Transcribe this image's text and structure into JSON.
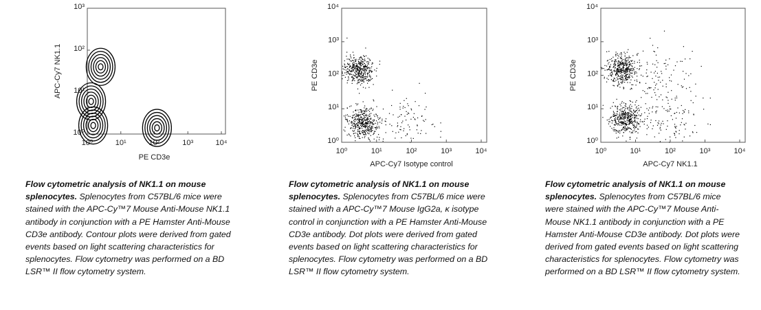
{
  "chart_data": [
    {
      "type": "contour",
      "xlabel": "PE CD3e",
      "ylabel": "APC-Cy7 NK1.1",
      "log_scale": true,
      "xlim": [
        1,
        10000
      ],
      "ylim": [
        1,
        1000
      ],
      "xticks": [
        {
          "value": 1,
          "label": "10⁰"
        },
        {
          "value": 10,
          "label": "10¹"
        },
        {
          "value": 100,
          "label": "10²"
        },
        {
          "value": 1000,
          "label": "10³"
        },
        {
          "value": 10000,
          "label": "10⁴"
        }
      ],
      "yticks": [
        {
          "value": 1,
          "label": "10⁰"
        },
        {
          "value": 10,
          "label": "10¹"
        },
        {
          "value": 100,
          "label": "10²"
        },
        {
          "value": 1000,
          "label": "10³"
        }
      ],
      "clusters": {
        "x": [
          1.3,
          1.5,
          120,
          2.5
        ],
        "y": [
          6,
          1.6,
          1.4,
          40
        ]
      }
    },
    {
      "type": "scatter",
      "xlabel": "APC-Cy7 Isotype control",
      "ylabel": "PE CD3e",
      "log_scale": true,
      "xlim": [
        1,
        10000
      ],
      "ylim": [
        1,
        10000
      ],
      "xticks": [
        {
          "value": 1,
          "label": "10⁰"
        },
        {
          "value": 10,
          "label": "10¹"
        },
        {
          "value": 100,
          "label": "10²"
        },
        {
          "value": 1000,
          "label": "10³"
        },
        {
          "value": 10000,
          "label": "10⁴"
        }
      ],
      "yticks": [
        {
          "value": 1,
          "label": "10⁰"
        },
        {
          "value": 10,
          "label": "10¹"
        },
        {
          "value": 100,
          "label": "10²"
        },
        {
          "value": 1000,
          "label": "10³"
        },
        {
          "value": 10000,
          "label": "10⁴"
        }
      ],
      "clusters": {
        "x": [
          3,
          4,
          60
        ],
        "y": [
          150,
          4,
          3
        ]
      }
    },
    {
      "type": "scatter",
      "xlabel": "APC-Cy7 NK1.1",
      "ylabel": "PE CD3e",
      "log_scale": true,
      "xlim": [
        1,
        10000
      ],
      "ylim": [
        1,
        10000
      ],
      "xticks": [
        {
          "value": 1,
          "label": "10⁰"
        },
        {
          "value": 10,
          "label": "10¹"
        },
        {
          "value": 100,
          "label": "10²"
        },
        {
          "value": 1000,
          "label": "10³"
        },
        {
          "value": 10000,
          "label": "10⁴"
        }
      ],
      "yticks": [
        {
          "value": 1,
          "label": "10⁰"
        },
        {
          "value": 10,
          "label": "10¹"
        },
        {
          "value": 100,
          "label": "10²"
        },
        {
          "value": 1000,
          "label": "10³"
        },
        {
          "value": 10000,
          "label": "10⁴"
        }
      ],
      "clusters": {
        "x": [
          4,
          5,
          80,
          60
        ],
        "y": [
          150,
          5,
          5,
          80
        ]
      }
    }
  ],
  "captions": [
    {
      "title": "Flow cytometric analysis of NK1.1 on mouse splenocytes.",
      "body": "Splenocytes from C57BL/6 mice were stained with the APC-Cy™7 Mouse Anti-Mouse NK1.1 antibody in conjunction with a PE Hamster Anti-Mouse CD3e antibody.  Contour plots were derived from gated events based on light scattering characteristics for splenocytes. Flow cytometry was performed on a BD LSR™ II flow cytometry system."
    },
    {
      "title": "Flow cytometric analysis of NK1.1 on mouse splenocytes.",
      "body": "Splenocytes from C57BL/6 mice were stained with a APC-Cy™7 Mouse IgG2a, κ isotype control in conjunction with a PE Hamster Anti-Mouse CD3e antibody.  Dot plots were derived from gated events based on light scattering characteristics for splenocytes.  Flow cytometry was performed on a BD LSR™ II flow cytometry system."
    },
    {
      "title": "Flow cytometric analysis of NK1.1 on mouse splenocytes.",
      "body": "Splenocytes from C57BL/6 mice were stained with the APC-Cy™7 Mouse Anti-Mouse NK1.1 antibody in conjunction with a PE Hamster Anti-Mouse CD3e antibody.  Dot plots were derived from gated events based on light scattering characteristics for splenocytes.  Flow cytometry was performed on a BD LSR™ II flow cytometry system."
    }
  ]
}
